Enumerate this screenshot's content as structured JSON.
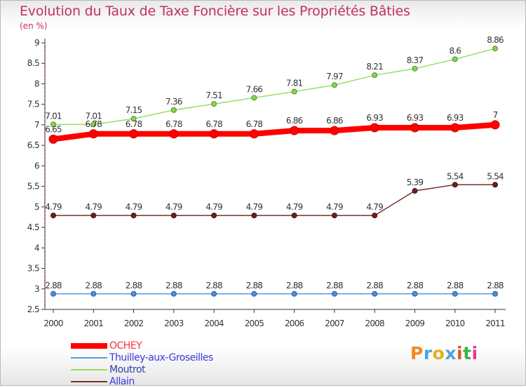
{
  "title": "Evolution du Taux de Taxe Foncière sur les Propriétés Bâties",
  "unit_label": "(en %)",
  "logo_text": "Proxiti",
  "chart_data": {
    "type": "line",
    "categories": [
      "2000",
      "2001",
      "2002",
      "2003",
      "2004",
      "2005",
      "2006",
      "2007",
      "2008",
      "2009",
      "2010",
      "2011"
    ],
    "ylim": [
      2.5,
      9
    ],
    "yticks": [
      2.5,
      3,
      3.5,
      4,
      4.5,
      5,
      5.5,
      6,
      6.5,
      7,
      7.5,
      8,
      8.5,
      9
    ],
    "grid": false,
    "legend_position": "bottom-left",
    "series": [
      {
        "name": "OCHEY",
        "color": "#ff0000",
        "values": [
          6.65,
          6.78,
          6.78,
          6.78,
          6.78,
          6.78,
          6.86,
          6.86,
          6.93,
          6.93,
          6.93,
          7
        ],
        "labels": [
          "6.65",
          "6.78",
          "6.78",
          "6.78",
          "6.78",
          "6.78",
          "6.86",
          "6.86",
          "6.93",
          "6.93",
          "6.93",
          "7"
        ]
      },
      {
        "name": "Thuilley-aux-Groseilles",
        "color": "#5b9bd5",
        "values": [
          2.88,
          2.88,
          2.88,
          2.88,
          2.88,
          2.88,
          2.88,
          2.88,
          2.88,
          2.88,
          2.88,
          2.88
        ],
        "labels": [
          "2.88",
          "2.88",
          "2.88",
          "2.88",
          "2.88",
          "2.88",
          "2.88",
          "2.88",
          "2.88",
          "2.88",
          "2.88",
          "2.88"
        ]
      },
      {
        "name": "Moutrot",
        "color": "#99dd66",
        "values": [
          7.01,
          7.01,
          7.15,
          7.36,
          7.51,
          7.66,
          7.81,
          7.97,
          8.21,
          8.37,
          8.6,
          8.86
        ],
        "labels": [
          "7.01",
          "7.01",
          "7.15",
          "7.36",
          "7.51",
          "7.66",
          "7.81",
          "7.97",
          "8.21",
          "8.37",
          "8.6",
          "8.86"
        ]
      },
      {
        "name": "Allain",
        "color": "#7a2e2e",
        "values": [
          4.79,
          4.79,
          4.79,
          4.79,
          4.79,
          4.79,
          4.79,
          4.79,
          4.79,
          5.39,
          5.54,
          5.54
        ],
        "labels": [
          "4.79",
          "4.79",
          "4.79",
          "4.79",
          "4.79",
          "4.79",
          "4.79",
          "4.79",
          "4.79",
          "5.39",
          "5.54",
          "5.54"
        ]
      }
    ]
  }
}
